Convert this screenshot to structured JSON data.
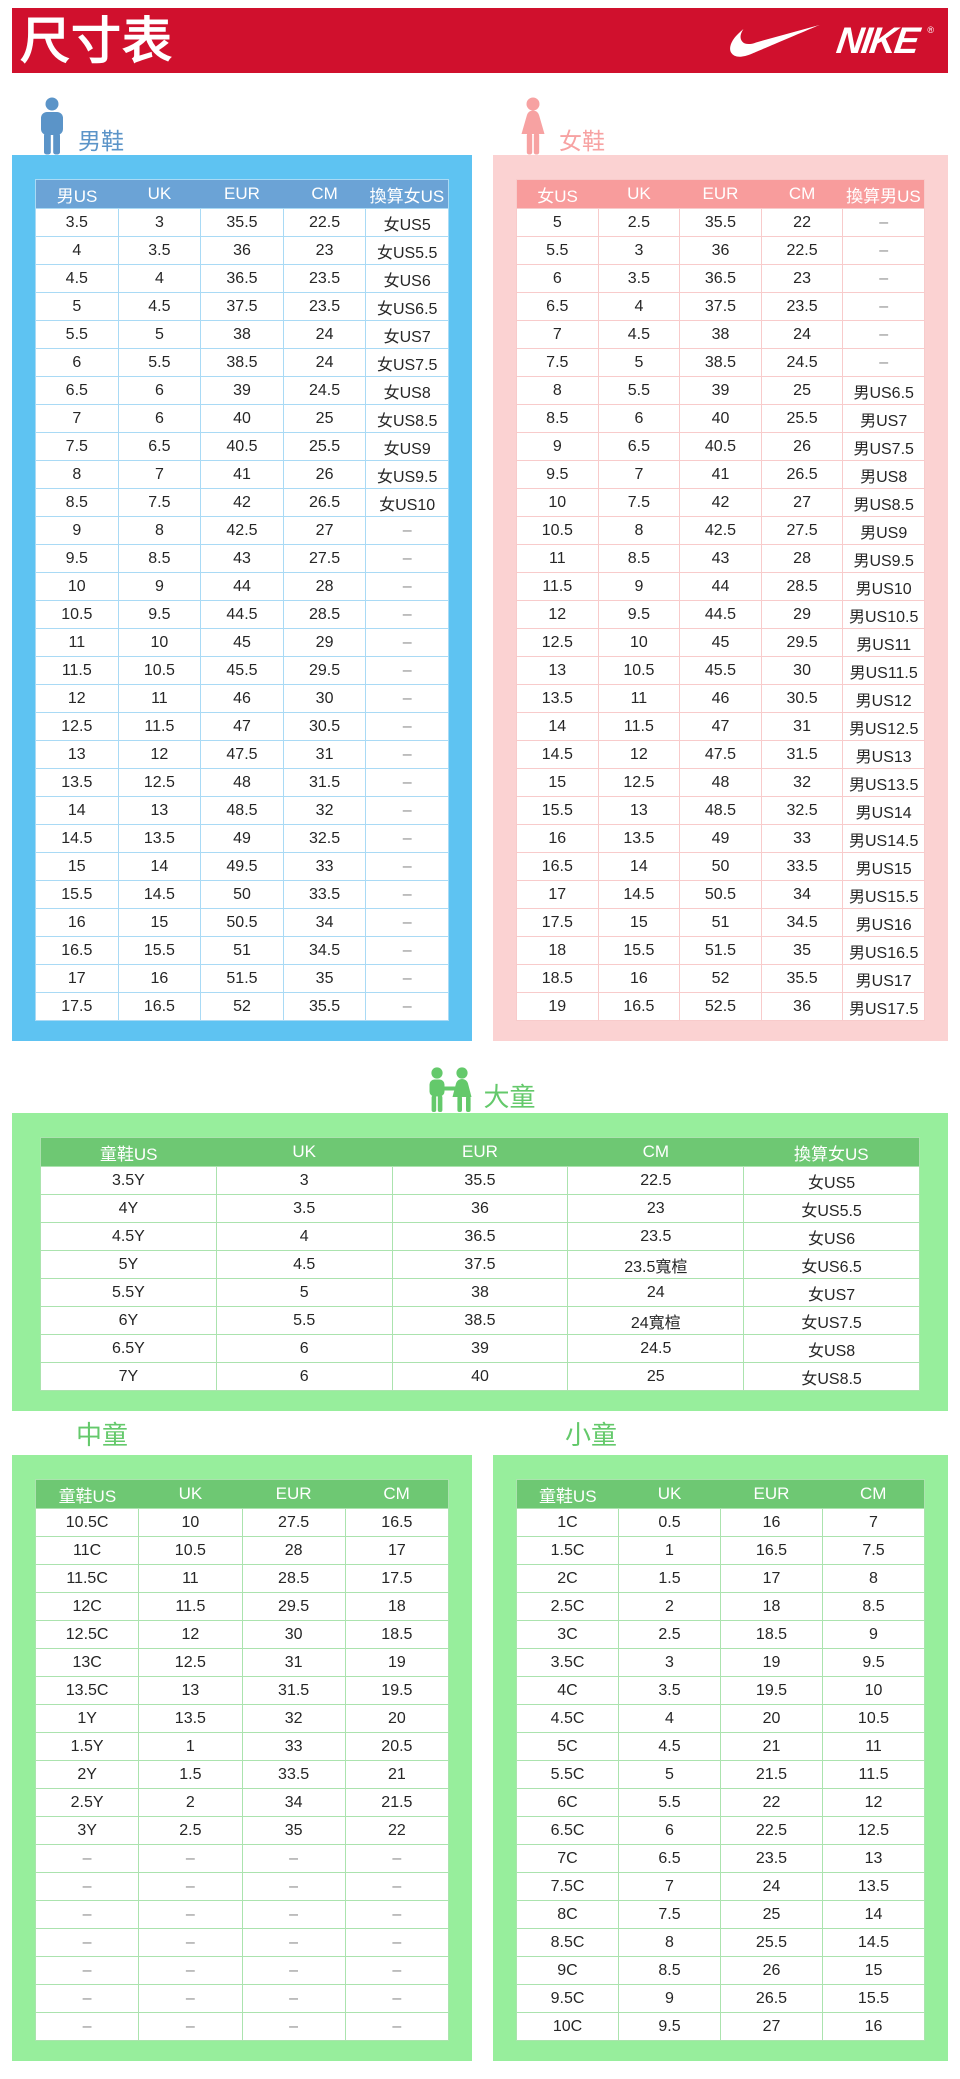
{
  "header": {
    "title": "尺寸表",
    "brand": "NIKE",
    "brand_mark": "®"
  },
  "colors": {
    "brand_red": "#d0102d",
    "men_blue_panel": "#5ec3f2",
    "men_blue_header": "#6ba3d6",
    "men_blue_accent": "#5b94c8",
    "women_pink_panel": "#fbd2d2",
    "women_pink_header": "#f89c9c",
    "women_pink_accent": "#f7a2a2",
    "kids_green_panel": "#97ee9c",
    "kids_green_header": "#6ec873",
    "kids_green_accent": "#64c96b"
  },
  "sections": {
    "men": {
      "label": "男鞋",
      "columns": [
        "男US",
        "UK",
        "EUR",
        "CM",
        "換算女US"
      ],
      "rows": [
        [
          "3.5",
          "3",
          "35.5",
          "22.5",
          "女US5"
        ],
        [
          "4",
          "3.5",
          "36",
          "23",
          "女US5.5"
        ],
        [
          "4.5",
          "4",
          "36.5",
          "23.5",
          "女US6"
        ],
        [
          "5",
          "4.5",
          "37.5",
          "23.5",
          "女US6.5"
        ],
        [
          "5.5",
          "5",
          "38",
          "24",
          "女US7"
        ],
        [
          "6",
          "5.5",
          "38.5",
          "24",
          "女US7.5"
        ],
        [
          "6.5",
          "6",
          "39",
          "24.5",
          "女US8"
        ],
        [
          "7",
          "6",
          "40",
          "25",
          "女US8.5"
        ],
        [
          "7.5",
          "6.5",
          "40.5",
          "25.5",
          "女US9"
        ],
        [
          "8",
          "7",
          "41",
          "26",
          "女US9.5"
        ],
        [
          "8.5",
          "7.5",
          "42",
          "26.5",
          "女US10"
        ],
        [
          "9",
          "8",
          "42.5",
          "27",
          "–"
        ],
        [
          "9.5",
          "8.5",
          "43",
          "27.5",
          "–"
        ],
        [
          "10",
          "9",
          "44",
          "28",
          "–"
        ],
        [
          "10.5",
          "9.5",
          "44.5",
          "28.5",
          "–"
        ],
        [
          "11",
          "10",
          "45",
          "29",
          "–"
        ],
        [
          "11.5",
          "10.5",
          "45.5",
          "29.5",
          "–"
        ],
        [
          "12",
          "11",
          "46",
          "30",
          "–"
        ],
        [
          "12.5",
          "11.5",
          "47",
          "30.5",
          "–"
        ],
        [
          "13",
          "12",
          "47.5",
          "31",
          "–"
        ],
        [
          "13.5",
          "12.5",
          "48",
          "31.5",
          "–"
        ],
        [
          "14",
          "13",
          "48.5",
          "32",
          "–"
        ],
        [
          "14.5",
          "13.5",
          "49",
          "32.5",
          "–"
        ],
        [
          "15",
          "14",
          "49.5",
          "33",
          "–"
        ],
        [
          "15.5",
          "14.5",
          "50",
          "33.5",
          "–"
        ],
        [
          "16",
          "15",
          "50.5",
          "34",
          "–"
        ],
        [
          "16.5",
          "15.5",
          "51",
          "34.5",
          "–"
        ],
        [
          "17",
          "16",
          "51.5",
          "35",
          "–"
        ],
        [
          "17.5",
          "16.5",
          "52",
          "35.5",
          "–"
        ]
      ]
    },
    "women": {
      "label": "女鞋",
      "columns": [
        "女US",
        "UK",
        "EUR",
        "CM",
        "換算男US"
      ],
      "rows": [
        [
          "5",
          "2.5",
          "35.5",
          "22",
          "–"
        ],
        [
          "5.5",
          "3",
          "36",
          "22.5",
          "–"
        ],
        [
          "6",
          "3.5",
          "36.5",
          "23",
          "–"
        ],
        [
          "6.5",
          "4",
          "37.5",
          "23.5",
          "–"
        ],
        [
          "7",
          "4.5",
          "38",
          "24",
          "–"
        ],
        [
          "7.5",
          "5",
          "38.5",
          "24.5",
          "–"
        ],
        [
          "8",
          "5.5",
          "39",
          "25",
          "男US6.5"
        ],
        [
          "8.5",
          "6",
          "40",
          "25.5",
          "男US7"
        ],
        [
          "9",
          "6.5",
          "40.5",
          "26",
          "男US7.5"
        ],
        [
          "9.5",
          "7",
          "41",
          "26.5",
          "男US8"
        ],
        [
          "10",
          "7.5",
          "42",
          "27",
          "男US8.5"
        ],
        [
          "10.5",
          "8",
          "42.5",
          "27.5",
          "男US9"
        ],
        [
          "11",
          "8.5",
          "43",
          "28",
          "男US9.5"
        ],
        [
          "11.5",
          "9",
          "44",
          "28.5",
          "男US10"
        ],
        [
          "12",
          "9.5",
          "44.5",
          "29",
          "男US10.5"
        ],
        [
          "12.5",
          "10",
          "45",
          "29.5",
          "男US11"
        ],
        [
          "13",
          "10.5",
          "45.5",
          "30",
          "男US11.5"
        ],
        [
          "13.5",
          "11",
          "46",
          "30.5",
          "男US12"
        ],
        [
          "14",
          "11.5",
          "47",
          "31",
          "男US12.5"
        ],
        [
          "14.5",
          "12",
          "47.5",
          "31.5",
          "男US13"
        ],
        [
          "15",
          "12.5",
          "48",
          "32",
          "男US13.5"
        ],
        [
          "15.5",
          "13",
          "48.5",
          "32.5",
          "男US14"
        ],
        [
          "16",
          "13.5",
          "49",
          "33",
          "男US14.5"
        ],
        [
          "16.5",
          "14",
          "50",
          "33.5",
          "男US15"
        ],
        [
          "17",
          "14.5",
          "50.5",
          "34",
          "男US15.5"
        ],
        [
          "17.5",
          "15",
          "51",
          "34.5",
          "男US16"
        ],
        [
          "18",
          "15.5",
          "51.5",
          "35",
          "男US16.5"
        ],
        [
          "18.5",
          "16",
          "52",
          "35.5",
          "男US17"
        ],
        [
          "19",
          "16.5",
          "52.5",
          "36",
          "男US17.5"
        ]
      ]
    },
    "bigkids": {
      "label": "大童",
      "columns": [
        "童鞋US",
        "UK",
        "EUR",
        "CM",
        "換算女US"
      ],
      "rows": [
        [
          "3.5Y",
          "3",
          "35.5",
          "22.5",
          "女US5"
        ],
        [
          "4Y",
          "3.5",
          "36",
          "23",
          "女US5.5"
        ],
        [
          "4.5Y",
          "4",
          "36.5",
          "23.5",
          "女US6"
        ],
        [
          "5Y",
          "4.5",
          "37.5",
          "23.5寬楦",
          "女US6.5"
        ],
        [
          "5.5Y",
          "5",
          "38",
          "24",
          "女US7"
        ],
        [
          "6Y",
          "5.5",
          "38.5",
          "24寬楦",
          "女US7.5"
        ],
        [
          "6.5Y",
          "6",
          "39",
          "24.5",
          "女US8"
        ],
        [
          "7Y",
          "6",
          "40",
          "25",
          "女US8.5"
        ]
      ]
    },
    "midkids": {
      "label": "中童",
      "columns": [
        "童鞋US",
        "UK",
        "EUR",
        "CM"
      ],
      "rows": [
        [
          "10.5C",
          "10",
          "27.5",
          "16.5"
        ],
        [
          "11C",
          "10.5",
          "28",
          "17"
        ],
        [
          "11.5C",
          "11",
          "28.5",
          "17.5"
        ],
        [
          "12C",
          "11.5",
          "29.5",
          "18"
        ],
        [
          "12.5C",
          "12",
          "30",
          "18.5"
        ],
        [
          "13C",
          "12.5",
          "31",
          "19"
        ],
        [
          "13.5C",
          "13",
          "31.5",
          "19.5"
        ],
        [
          "1Y",
          "13.5",
          "32",
          "20"
        ],
        [
          "1.5Y",
          "1",
          "33",
          "20.5"
        ],
        [
          "2Y",
          "1.5",
          "33.5",
          "21"
        ],
        [
          "2.5Y",
          "2",
          "34",
          "21.5"
        ],
        [
          "3Y",
          "2.5",
          "35",
          "22"
        ],
        [
          "–",
          "–",
          "–",
          "–"
        ],
        [
          "–",
          "–",
          "–",
          "–"
        ],
        [
          "–",
          "–",
          "–",
          "–"
        ],
        [
          "–",
          "–",
          "–",
          "–"
        ],
        [
          "–",
          "–",
          "–",
          "–"
        ],
        [
          "–",
          "–",
          "–",
          "–"
        ],
        [
          "–",
          "–",
          "–",
          "–"
        ]
      ]
    },
    "smallkids": {
      "label": "小童",
      "columns": [
        "童鞋US",
        "UK",
        "EUR",
        "CM"
      ],
      "rows": [
        [
          "1C",
          "0.5",
          "16",
          "7"
        ],
        [
          "1.5C",
          "1",
          "16.5",
          "7.5"
        ],
        [
          "2C",
          "1.5",
          "17",
          "8"
        ],
        [
          "2.5C",
          "2",
          "18",
          "8.5"
        ],
        [
          "3C",
          "2.5",
          "18.5",
          "9"
        ],
        [
          "3.5C",
          "3",
          "19",
          "9.5"
        ],
        [
          "4C",
          "3.5",
          "19.5",
          "10"
        ],
        [
          "4.5C",
          "4",
          "20",
          "10.5"
        ],
        [
          "5C",
          "4.5",
          "21",
          "11"
        ],
        [
          "5.5C",
          "5",
          "21.5",
          "11.5"
        ],
        [
          "6C",
          "5.5",
          "22",
          "12"
        ],
        [
          "6.5C",
          "6",
          "22.5",
          "12.5"
        ],
        [
          "7C",
          "6.5",
          "23.5",
          "13"
        ],
        [
          "7.5C",
          "7",
          "24",
          "13.5"
        ],
        [
          "8C",
          "7.5",
          "25",
          "14"
        ],
        [
          "8.5C",
          "8",
          "25.5",
          "14.5"
        ],
        [
          "9C",
          "8.5",
          "26",
          "15"
        ],
        [
          "9.5C",
          "9",
          "26.5",
          "15.5"
        ],
        [
          "10C",
          "9.5",
          "27",
          "16"
        ]
      ]
    }
  }
}
